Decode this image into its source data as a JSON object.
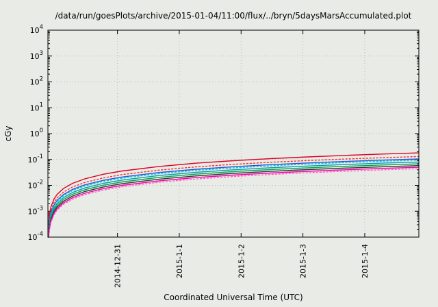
{
  "chart_data": {
    "type": "line",
    "title": "/data/run/goesPlots/archive/2015-01-04/11:00/flux/../bryn/5daysMarsAccumulated.plot",
    "xlabel": "Coordinated Universal Time (UTC)",
    "ylabel": "cGy",
    "y_scale": "log",
    "y_range": [
      0.0001,
      10000
    ],
    "y_tick_exponents": [
      -4,
      -3,
      -2,
      -1,
      0,
      1,
      2,
      3,
      4
    ],
    "x_range_hours": [
      0,
      144
    ],
    "x_ticks": [
      {
        "hour": 27,
        "label": "2014-12-31"
      },
      {
        "hour": 51,
        "label": "2015-1-1"
      },
      {
        "hour": 75,
        "label": "2015-1-2"
      },
      {
        "hour": 99,
        "label": "2015-1-3"
      },
      {
        "hour": 123,
        "label": "2015-1-4"
      }
    ],
    "grid": true,
    "legend": "none",
    "colors": {
      "grid": "#b7bcb7",
      "axis": "#000000",
      "background": "#e9ebe7"
    },
    "x_hours": [
      0.072,
      0.144,
      0.3,
      0.6,
      1.2,
      2.4,
      3.6,
      6,
      9.6,
      14.4,
      21.6,
      28.8,
      43.2,
      57.6,
      72,
      86.4,
      100.8,
      115.2,
      129.6,
      144
    ],
    "series": [
      {
        "name": "red-upper",
        "color": "#dd0022",
        "dash": "solid",
        "final_cGy": 0.18,
        "values": [
          9e-05,
          0.00018,
          0.00038,
          0.00075,
          0.0015,
          0.003,
          0.0045,
          0.0075,
          0.012,
          0.018,
          0.027,
          0.036,
          0.054,
          0.072,
          0.09,
          0.108,
          0.126,
          0.144,
          0.162,
          0.18
        ]
      },
      {
        "name": "red-dotted",
        "color": "#ff2a2a",
        "dash": "dotted",
        "final_cGy": 0.13,
        "values": [
          6.5e-05,
          0.00013,
          0.00027,
          0.00054,
          0.00108,
          0.00217,
          0.00325,
          0.00542,
          0.00867,
          0.013,
          0.0195,
          0.026,
          0.039,
          0.052,
          0.065,
          0.078,
          0.091,
          0.104,
          0.117,
          0.13
        ]
      },
      {
        "name": "blue",
        "color": "#2255dd",
        "dash": "solid",
        "final_cGy": 0.105,
        "values": [
          5.3e-05,
          0.000105,
          0.00022,
          0.00044,
          0.00088,
          0.00175,
          0.00263,
          0.00438,
          0.007,
          0.0105,
          0.0158,
          0.021,
          0.0315,
          0.042,
          0.0525,
          0.063,
          0.0735,
          0.084,
          0.0945,
          0.105
        ]
      },
      {
        "name": "cyan-dotted",
        "color": "#00c8d8",
        "dash": "dotted",
        "final_cGy": 0.095,
        "values": [
          4.8e-05,
          9.5e-05,
          0.0002,
          0.0004,
          0.00079,
          0.00158,
          0.00238,
          0.00396,
          0.00633,
          0.0095,
          0.0143,
          0.019,
          0.0285,
          0.038,
          0.0475,
          0.057,
          0.0665,
          0.076,
          0.0855,
          0.095
        ]
      },
      {
        "name": "cyan",
        "color": "#009fae",
        "dash": "solid",
        "final_cGy": 0.08,
        "values": [
          4e-05,
          8e-05,
          0.00017,
          0.00033,
          0.00067,
          0.00133,
          0.002,
          0.00333,
          0.00533,
          0.008,
          0.012,
          0.016,
          0.024,
          0.032,
          0.04,
          0.048,
          0.056,
          0.064,
          0.072,
          0.08
        ]
      },
      {
        "name": "green",
        "color": "#00a550",
        "dash": "solid",
        "final_cGy": 0.068,
        "values": [
          3.4e-05,
          6.8e-05,
          0.00014,
          0.00028,
          0.00057,
          0.00113,
          0.0017,
          0.00283,
          0.00453,
          0.0068,
          0.0102,
          0.0136,
          0.0204,
          0.0272,
          0.034,
          0.0408,
          0.0476,
          0.0544,
          0.0612,
          0.068
        ]
      },
      {
        "name": "black",
        "color": "#333333",
        "dash": "solid",
        "final_cGy": 0.058,
        "values": [
          2.9e-05,
          5.8e-05,
          0.00012,
          0.00024,
          0.00048,
          0.00097,
          0.00145,
          0.00242,
          0.00387,
          0.0058,
          0.0087,
          0.0116,
          0.0174,
          0.0232,
          0.029,
          0.0348,
          0.0406,
          0.0464,
          0.0522,
          0.058
        ]
      },
      {
        "name": "magenta",
        "color": "#ee00aa",
        "dash": "solid",
        "final_cGy": 0.05,
        "values": [
          2.5e-05,
          5e-05,
          0.0001,
          0.00021,
          0.00042,
          0.00083,
          0.00125,
          0.00208,
          0.00333,
          0.005,
          0.0075,
          0.01,
          0.015,
          0.02,
          0.025,
          0.03,
          0.035,
          0.04,
          0.045,
          0.05
        ]
      },
      {
        "name": "pink-dotted",
        "color": "#ff5fc0",
        "dash": "dotted",
        "final_cGy": 0.044,
        "values": [
          2.2e-05,
          4.4e-05,
          9.2e-05,
          0.00018,
          0.00037,
          0.00073,
          0.0011,
          0.00183,
          0.00293,
          0.0044,
          0.0066,
          0.0088,
          0.0132,
          0.0176,
          0.022,
          0.0264,
          0.0308,
          0.0352,
          0.0396,
          0.044
        ]
      }
    ]
  }
}
